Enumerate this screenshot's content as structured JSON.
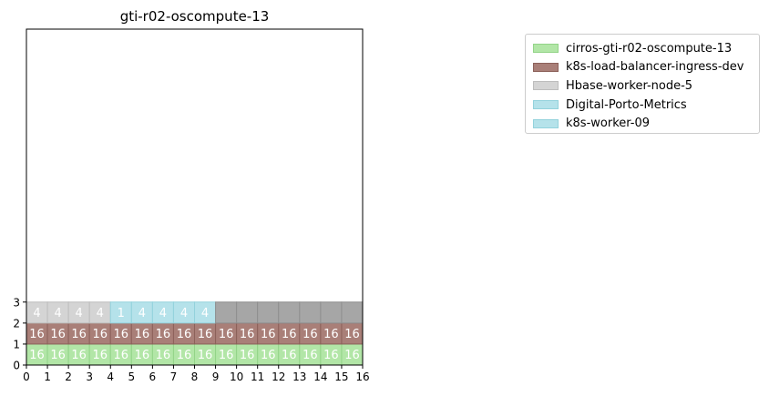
{
  "chart_data": {
    "type": "heatmap",
    "title": "gti-r02-oscompute-13",
    "xlabel": "",
    "ylabel": "",
    "xlim": [
      0,
      16
    ],
    "ylim": [
      0,
      16
    ],
    "grid": false,
    "legend_position": "top-right outside",
    "x_ticks": [
      "0",
      "1",
      "2",
      "3",
      "4",
      "5",
      "6",
      "7",
      "8",
      "9",
      "10",
      "11",
      "12",
      "13",
      "14",
      "15",
      "16"
    ],
    "y_ticks": [
      "0",
      "1",
      "2",
      "3"
    ],
    "series": [
      {
        "name": "cirros-gti-r02-oscompute-13",
        "color": "#b2e6a7",
        "edge": "#93d488"
      },
      {
        "name": "k8s-load-balancer-ingress-dev",
        "color": "#a97f78",
        "edge": "#8c615a"
      },
      {
        "name": "Hbase-worker-node-5",
        "color": "#d4d4d4",
        "edge": "#bdbdbd"
      },
      {
        "name": "Digital-Porto-Metrics",
        "color": "#b5e2ea",
        "edge": "#93d2dc"
      },
      {
        "name": "k8s-worker-09",
        "color": "#b5e2ea",
        "edge": "#93d2dc"
      }
    ],
    "empty_color": "#a6a6a6",
    "rows": [
      {
        "row": 0,
        "cells": [
          {
            "series": 0,
            "label": "16"
          },
          {
            "series": 0,
            "label": "16"
          },
          {
            "series": 0,
            "label": "16"
          },
          {
            "series": 0,
            "label": "16"
          },
          {
            "series": 0,
            "label": "16"
          },
          {
            "series": 0,
            "label": "16"
          },
          {
            "series": 0,
            "label": "16"
          },
          {
            "series": 0,
            "label": "16"
          },
          {
            "series": 0,
            "label": "16"
          },
          {
            "series": 0,
            "label": "16"
          },
          {
            "series": 0,
            "label": "16"
          },
          {
            "series": 0,
            "label": "16"
          },
          {
            "series": 0,
            "label": "16"
          },
          {
            "series": 0,
            "label": "16"
          },
          {
            "series": 0,
            "label": "16"
          },
          {
            "series": 0,
            "label": "16"
          }
        ]
      },
      {
        "row": 1,
        "cells": [
          {
            "series": 1,
            "label": "16"
          },
          {
            "series": 1,
            "label": "16"
          },
          {
            "series": 1,
            "label": "16"
          },
          {
            "series": 1,
            "label": "16"
          },
          {
            "series": 1,
            "label": "16"
          },
          {
            "series": 1,
            "label": "16"
          },
          {
            "series": 1,
            "label": "16"
          },
          {
            "series": 1,
            "label": "16"
          },
          {
            "series": 1,
            "label": "16"
          },
          {
            "series": 1,
            "label": "16"
          },
          {
            "series": 1,
            "label": "16"
          },
          {
            "series": 1,
            "label": "16"
          },
          {
            "series": 1,
            "label": "16"
          },
          {
            "series": 1,
            "label": "16"
          },
          {
            "series": 1,
            "label": "16"
          },
          {
            "series": 1,
            "label": "16"
          }
        ]
      },
      {
        "row": 2,
        "cells": [
          {
            "series": 2,
            "label": "4"
          },
          {
            "series": 2,
            "label": "4"
          },
          {
            "series": 2,
            "label": "4"
          },
          {
            "series": 2,
            "label": "4"
          },
          {
            "series": 3,
            "label": "1"
          },
          {
            "series": 4,
            "label": "4"
          },
          {
            "series": 4,
            "label": "4"
          },
          {
            "series": 4,
            "label": "4"
          },
          {
            "series": 4,
            "label": "4"
          },
          {
            "series": -1,
            "label": ""
          },
          {
            "series": -1,
            "label": ""
          },
          {
            "series": -1,
            "label": ""
          },
          {
            "series": -1,
            "label": ""
          },
          {
            "series": -1,
            "label": ""
          },
          {
            "series": -1,
            "label": ""
          },
          {
            "series": -1,
            "label": ""
          }
        ]
      }
    ]
  }
}
